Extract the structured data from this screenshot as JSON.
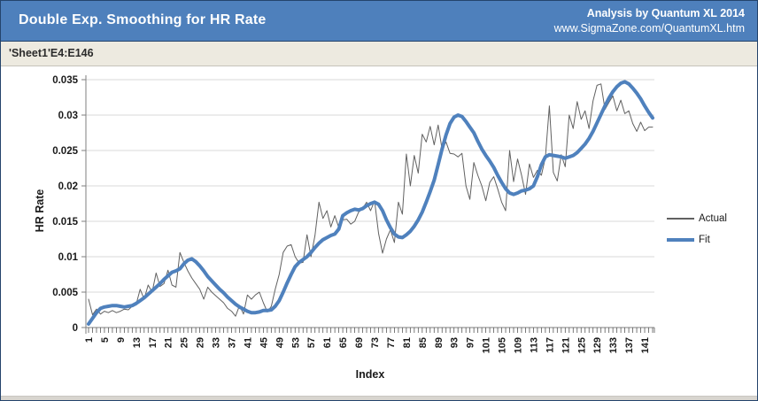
{
  "header": {
    "title": "Double Exp. Smoothing for HR Rate",
    "analysis_credit": "Analysis by Quantum XL 2014",
    "url": "www.SigmaZone.com/QuantumXL.htm"
  },
  "subtitle": "'Sheet1'E4:E146",
  "colors": {
    "header_bg": "#4E80BC",
    "header_text": "#FFFFFF",
    "canvas_border": "#24446C",
    "subtitle_bg": "#EDEAE0",
    "subtitle_text": "#2b2b2b",
    "bottom_strip": "#D8D5CF",
    "gridline": "#D9D9D9",
    "axis_line": "#7F7F7F",
    "tick_mark": "#595959",
    "tick_label": "#1A1A1A",
    "actual": "#616161",
    "fit": "#4F81BD"
  },
  "chart_data": {
    "type": "line",
    "title": "'Sheet1'E4:E146",
    "xlabel": "Index",
    "ylabel": "HR Rate",
    "x_range": [
      1,
      143
    ],
    "x_tick_every": 4,
    "x_tick_labels": [
      1,
      5,
      9,
      13,
      17,
      21,
      25,
      29,
      33,
      37,
      41,
      45,
      49,
      53,
      57,
      61,
      65,
      69,
      73,
      77,
      81,
      85,
      89,
      93,
      97,
      101,
      105,
      109,
      113,
      117,
      121,
      125,
      129,
      133,
      137,
      141
    ],
    "ylim": [
      0,
      0.035
    ],
    "y_tick_step": 0.005,
    "y_tick_labels": [
      "0",
      "0.005",
      "0.01",
      "0.015",
      "0.02",
      "0.025",
      "0.03",
      "0.035"
    ],
    "grid": true,
    "legend_position": "right",
    "series": [
      {
        "name": "Actual",
        "color": "#616161",
        "width": 1,
        "values": [
          0.004,
          0.0018,
          0.0026,
          0.0019,
          0.0023,
          0.0021,
          0.0024,
          0.0021,
          0.0023,
          0.0026,
          0.0025,
          0.003,
          0.0033,
          0.0054,
          0.004,
          0.006,
          0.005,
          0.0077,
          0.0058,
          0.0062,
          0.0081,
          0.006,
          0.0057,
          0.0106,
          0.0092,
          0.008,
          0.007,
          0.0062,
          0.0054,
          0.004,
          0.0057,
          0.005,
          0.0045,
          0.004,
          0.0035,
          0.0027,
          0.0023,
          0.0016,
          0.0031,
          0.0019,
          0.0046,
          0.004,
          0.0046,
          0.005,
          0.0035,
          0.0022,
          0.003,
          0.0054,
          0.0075,
          0.0106,
          0.0115,
          0.0117,
          0.01,
          0.0091,
          0.0092,
          0.0131,
          0.01,
          0.013,
          0.0177,
          0.0154,
          0.0165,
          0.0142,
          0.0158,
          0.0141,
          0.0152,
          0.0153,
          0.0146,
          0.015,
          0.0163,
          0.0168,
          0.0177,
          0.0165,
          0.0179,
          0.0133,
          0.0105,
          0.0125,
          0.0138,
          0.012,
          0.0177,
          0.016,
          0.0245,
          0.02,
          0.0243,
          0.0218,
          0.0273,
          0.0262,
          0.0284,
          0.0258,
          0.0286,
          0.0252,
          0.0262,
          0.0246,
          0.0245,
          0.0241,
          0.0246,
          0.02,
          0.0181,
          0.0233,
          0.0215,
          0.02,
          0.0179,
          0.0205,
          0.0213,
          0.0196,
          0.0177,
          0.0165,
          0.025,
          0.0206,
          0.0238,
          0.0215,
          0.0188,
          0.0231,
          0.0212,
          0.0222,
          0.0215,
          0.024,
          0.0313,
          0.0219,
          0.0207,
          0.0244,
          0.0227,
          0.03,
          0.0281,
          0.0319,
          0.0294,
          0.0306,
          0.0281,
          0.032,
          0.0342,
          0.0344,
          0.0308,
          0.0318,
          0.0327,
          0.0306,
          0.0321,
          0.0302,
          0.0306,
          0.0288,
          0.0277,
          0.029,
          0.0278,
          0.0283,
          0.0283
        ]
      },
      {
        "name": "Fit",
        "color": "#4F81BD",
        "width": 4,
        "values": [
          0.0005,
          0.0013,
          0.0021,
          0.0027,
          0.0029,
          0.003,
          0.0031,
          0.0031,
          0.003,
          0.0029,
          0.003,
          0.0031,
          0.0034,
          0.0038,
          0.0042,
          0.0047,
          0.0052,
          0.0057,
          0.0062,
          0.0068,
          0.0073,
          0.0078,
          0.008,
          0.0083,
          0.009,
          0.0095,
          0.0097,
          0.0093,
          0.0087,
          0.008,
          0.0072,
          0.0066,
          0.006,
          0.0054,
          0.0049,
          0.0043,
          0.0038,
          0.0033,
          0.0029,
          0.0026,
          0.0023,
          0.0021,
          0.0021,
          0.0022,
          0.0024,
          0.0024,
          0.0025,
          0.003,
          0.0038,
          0.005,
          0.0063,
          0.0075,
          0.0086,
          0.0092,
          0.0096,
          0.01,
          0.0106,
          0.0113,
          0.0119,
          0.0124,
          0.0127,
          0.013,
          0.0132,
          0.0139,
          0.0158,
          0.0162,
          0.0165,
          0.0167,
          0.0166,
          0.0168,
          0.0172,
          0.0175,
          0.0177,
          0.0174,
          0.0165,
          0.0152,
          0.0141,
          0.0132,
          0.0128,
          0.0127,
          0.0131,
          0.0136,
          0.0143,
          0.0152,
          0.0163,
          0.0177,
          0.0192,
          0.0208,
          0.023,
          0.0252,
          0.0272,
          0.0288,
          0.0297,
          0.03,
          0.0298,
          0.0291,
          0.0283,
          0.0275,
          0.0263,
          0.0252,
          0.0243,
          0.0235,
          0.0226,
          0.0215,
          0.0205,
          0.0196,
          0.019,
          0.0188,
          0.019,
          0.0193,
          0.0194,
          0.0196,
          0.02,
          0.0213,
          0.023,
          0.0241,
          0.0244,
          0.0243,
          0.0242,
          0.0241,
          0.0239,
          0.0241,
          0.0243,
          0.0247,
          0.0253,
          0.0259,
          0.0267,
          0.0277,
          0.0289,
          0.0301,
          0.0313,
          0.0324,
          0.0333,
          0.034,
          0.0345,
          0.0347,
          0.0344,
          0.0338,
          0.0331,
          0.0323,
          0.0313,
          0.0304,
          0.0296
        ]
      }
    ]
  }
}
